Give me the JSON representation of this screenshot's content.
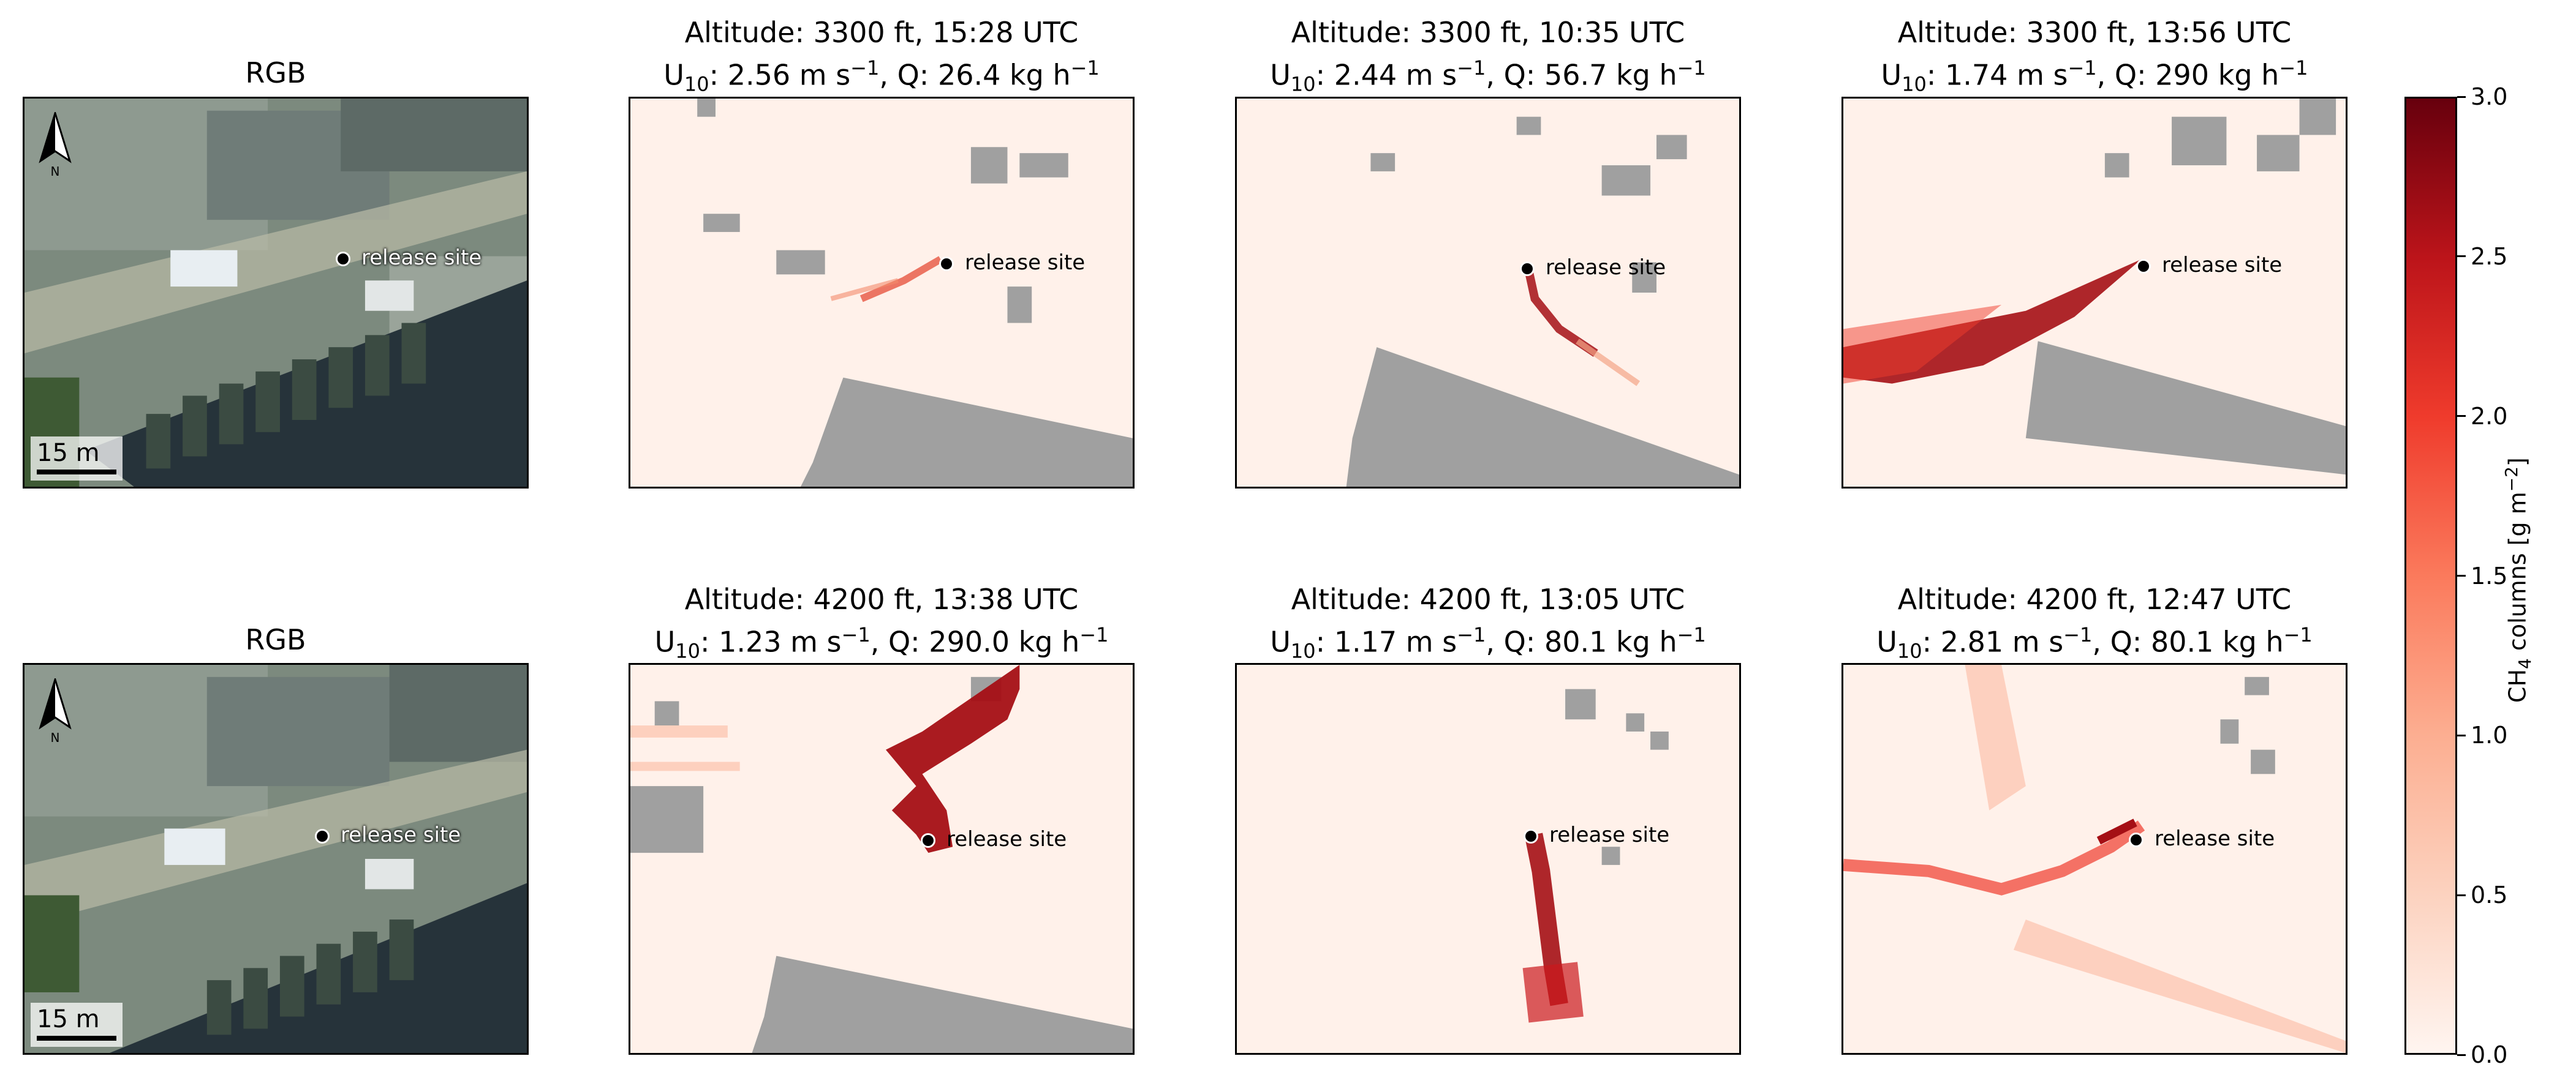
{
  "panels": [
    {
      "kind": "rgb",
      "title": "RGB",
      "marker_label": "release site",
      "scale_label": "15 m",
      "north_label": "N"
    },
    {
      "kind": "ch4",
      "title_line1": "Altitude: 3300 ft, 15:28 UTC",
      "wind": "2.56",
      "rate": "26.4",
      "marker_label": "release site"
    },
    {
      "kind": "ch4",
      "title_line1": "Altitude: 3300 ft, 10:35 UTC",
      "wind": "2.44",
      "rate": "56.7",
      "marker_label": "release site"
    },
    {
      "kind": "ch4",
      "title_line1": "Altitude: 3300 ft, 13:56 UTC",
      "wind": "1.74",
      "rate": "290",
      "marker_label": "release site"
    },
    {
      "kind": "rgb",
      "title": "RGB",
      "marker_label": "release site",
      "scale_label": "15 m",
      "north_label": "N"
    },
    {
      "kind": "ch4",
      "title_line1": "Altitude: 4200 ft, 13:38 UTC",
      "wind": "1.23",
      "rate": "290.0",
      "marker_label": "release site"
    },
    {
      "kind": "ch4",
      "title_line1": "Altitude: 4200 ft, 13:05 UTC",
      "wind": "1.17",
      "rate": "80.1",
      "marker_label": "release site"
    },
    {
      "kind": "ch4",
      "title_line1": "Altitude: 4200 ft, 12:47 UTC",
      "wind": "2.81",
      "rate": "80.1",
      "marker_label": "release site"
    }
  ],
  "units": {
    "wind_prefix": "U",
    "wind_sub": "10",
    "wind_unit": "m s",
    "wind_exp": "−1",
    "rate_prefix": "Q:",
    "rate_unit": "kg h",
    "rate_exp": "−1"
  },
  "chart_data": {
    "type": "heatmap",
    "colorbar": {
      "label_prefix": "CH",
      "label_sub": "4",
      "label_text": " columns [g m",
      "label_exp": "−2",
      "label_suffix": "]",
      "ticks": [
        "0.0",
        "0.5",
        "1.0",
        "1.5",
        "2.0",
        "2.5",
        "3.0"
      ],
      "range": [
        0,
        3
      ],
      "colormap": "Reds"
    },
    "observations": [
      {
        "altitude_ft": 3300,
        "time_utc": "15:28",
        "u10_ms": 2.56,
        "q_kgh": 26.4
      },
      {
        "altitude_ft": 3300,
        "time_utc": "10:35",
        "u10_ms": 2.44,
        "q_kgh": 56.7
      },
      {
        "altitude_ft": 3300,
        "time_utc": "13:56",
        "u10_ms": 1.74,
        "q_kgh": 290
      },
      {
        "altitude_ft": 4200,
        "time_utc": "13:38",
        "u10_ms": 1.23,
        "q_kgh": 290.0
      },
      {
        "altitude_ft": 4200,
        "time_utc": "13:05",
        "u10_ms": 1.17,
        "q_kgh": 80.1
      },
      {
        "altitude_ft": 4200,
        "time_utc": "12:47",
        "u10_ms": 2.81,
        "q_kgh": 80.1
      }
    ],
    "masked_color": "#a0a0a0"
  }
}
